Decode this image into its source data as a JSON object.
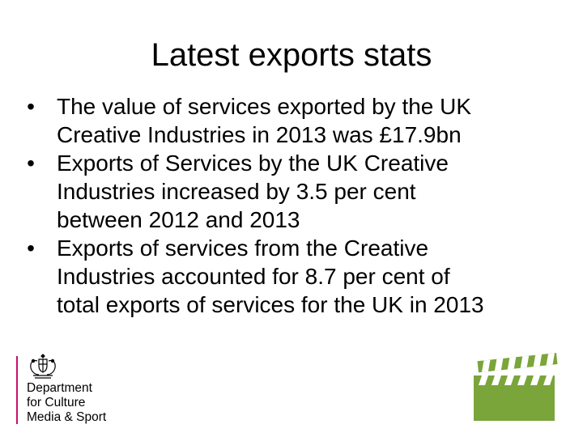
{
  "slide": {
    "title": "Latest exports stats",
    "bullet_glyph": "•",
    "bullets": [
      {
        "lines": [
          "The value of services exported by the UK",
          "Creative Industries in 2013 was £17.9bn"
        ]
      },
      {
        "lines": [
          "Exports of Services by the UK Creative",
          "Industries increased by 3.5 per cent",
          "between 2012 and 2013"
        ]
      },
      {
        "lines": [
          "Exports of services from the Creative",
          "Industries accounted for 8.7 per cent of",
          "total exports of services for the UK in 2013"
        ]
      }
    ]
  },
  "logo": {
    "crest_icon": "royal-coat-of-arms-icon",
    "lines": [
      "Department",
      "for Culture",
      "Media & Sport"
    ],
    "bar_color": "#c8116e"
  },
  "decoration": {
    "icon": "film-clapperboard-icon",
    "color": "#7aa53a"
  }
}
